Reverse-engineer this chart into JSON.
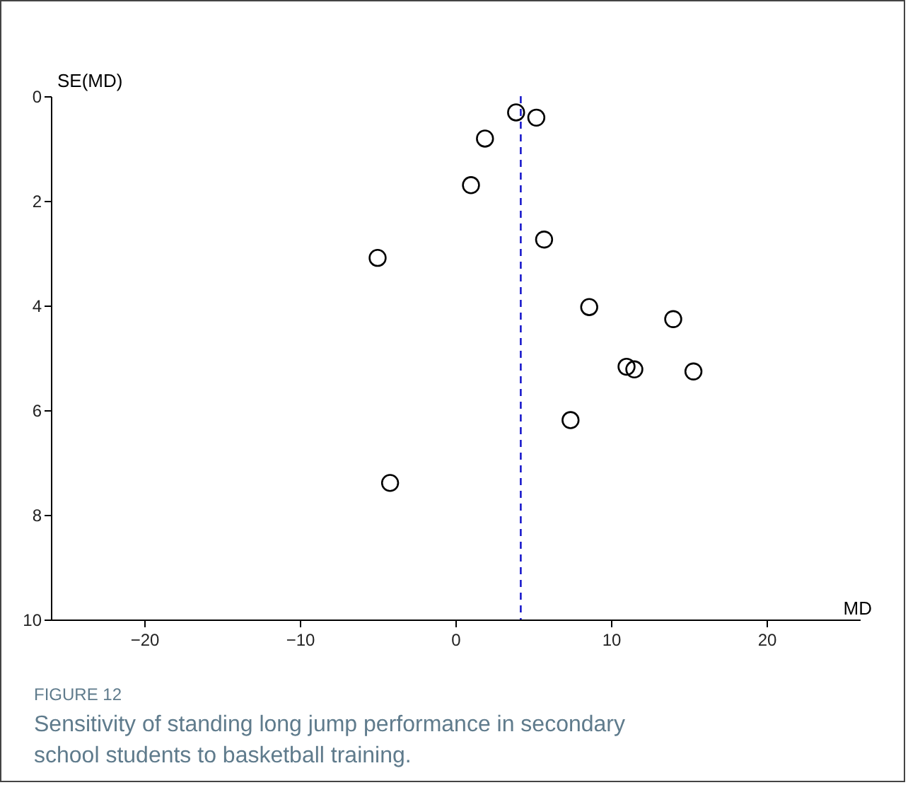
{
  "chart_data": {
    "type": "scatter",
    "title": "FIGURE 12",
    "subtitle": "Sensitivity of standing long jump performance in secondary school students to basketball training.",
    "xlabel": "MD",
    "ylabel": "SE(MD)",
    "x": [
      3.9,
      5.2,
      1.9,
      1.0,
      5.7,
      -5.0,
      8.6,
      14.0,
      11.0,
      11.5,
      15.3,
      7.4,
      -4.2
    ],
    "values": [
      0.31,
      0.41,
      0.81,
      1.7,
      2.74,
      3.09,
      4.03,
      4.26,
      5.17,
      5.22,
      5.26,
      6.19,
      7.39
    ],
    "color": "#000000",
    "marker": "circle",
    "grid": false,
    "xlim": [
      -26,
      26
    ],
    "xticks": [
      -20,
      -10,
      0,
      10,
      20
    ],
    "ylim": [
      10,
      0
    ],
    "yticks": [
      0,
      2,
      4,
      6,
      8,
      10
    ],
    "ref_lines": [
      {
        "axis": "x",
        "value": 4.2,
        "color": "#1a1acc",
        "line_style": "dashed"
      }
    ]
  }
}
